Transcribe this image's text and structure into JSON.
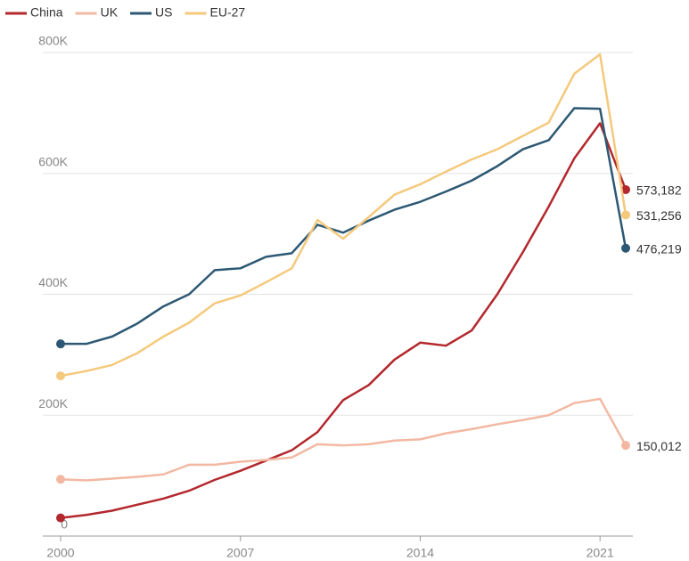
{
  "chart_data": {
    "type": "line",
    "x": [
      2000,
      2001,
      2002,
      2003,
      2004,
      2005,
      2006,
      2007,
      2008,
      2009,
      2010,
      2011,
      2012,
      2013,
      2014,
      2015,
      2016,
      2017,
      2018,
      2019,
      2020,
      2021,
      2022
    ],
    "xlim": [
      2000,
      2022
    ],
    "xticks": [
      2000,
      2007,
      2014,
      2021
    ],
    "ylim": [
      0,
      800000
    ],
    "yticks": [
      {
        "value": 0,
        "label": "0"
      },
      {
        "value": 200000,
        "label": "200K"
      },
      {
        "value": 400000,
        "label": "400K"
      },
      {
        "value": 600000,
        "label": "600K"
      },
      {
        "value": 800000,
        "label": "800K"
      }
    ],
    "grid": true,
    "legend": "top-left",
    "series": [
      {
        "name": "China",
        "color": "#b3282d",
        "values": [
          30000,
          35000,
          42000,
          52000,
          62000,
          75000,
          93000,
          108000,
          125000,
          142000,
          172000,
          225000,
          250000,
          292000,
          320000,
          315000,
          340000,
          400000,
          470000,
          545000,
          625000,
          683000,
          573182
        ],
        "value_labels": [
          null,
          null,
          null,
          null,
          null,
          null,
          null,
          null,
          null,
          null,
          null,
          null,
          null,
          null,
          null,
          null,
          null,
          null,
          null,
          null,
          null,
          null,
          "573,182"
        ]
      },
      {
        "name": "UK",
        "color": "#f2b8a2",
        "values": [
          94000,
          92000,
          95000,
          98000,
          102000,
          118000,
          118000,
          123000,
          126000,
          130000,
          152000,
          150000,
          152000,
          158000,
          160000,
          170000,
          177000,
          185000,
          192000,
          200000,
          220000,
          227000,
          150012
        ],
        "value_labels": [
          null,
          null,
          null,
          null,
          null,
          null,
          null,
          null,
          null,
          null,
          null,
          null,
          null,
          null,
          null,
          null,
          null,
          null,
          null,
          null,
          null,
          null,
          "150,012"
        ]
      },
      {
        "name": "US",
        "color": "#2c5873",
        "values": [
          318000,
          318000,
          330000,
          352000,
          380000,
          400000,
          440000,
          443000,
          462000,
          468000,
          515000,
          502000,
          522000,
          540000,
          553000,
          570000,
          588000,
          612000,
          640000,
          655000,
          708000,
          707000,
          476219
        ],
        "value_labels": [
          null,
          null,
          null,
          null,
          null,
          null,
          null,
          null,
          null,
          null,
          null,
          null,
          null,
          null,
          null,
          null,
          null,
          null,
          null,
          null,
          null,
          null,
          "476,219"
        ]
      },
      {
        "name": "EU-27",
        "color": "#f5c97c",
        "values": [
          265000,
          273000,
          283000,
          303000,
          330000,
          353000,
          385000,
          398000,
          420000,
          443000,
          523000,
          492000,
          528000,
          565000,
          582000,
          603000,
          623000,
          640000,
          662000,
          684000,
          765000,
          797000,
          531256
        ],
        "value_labels": [
          null,
          null,
          null,
          null,
          null,
          null,
          null,
          null,
          null,
          null,
          null,
          null,
          null,
          null,
          null,
          null,
          null,
          null,
          null,
          null,
          null,
          null,
          "531,256"
        ]
      }
    ]
  }
}
